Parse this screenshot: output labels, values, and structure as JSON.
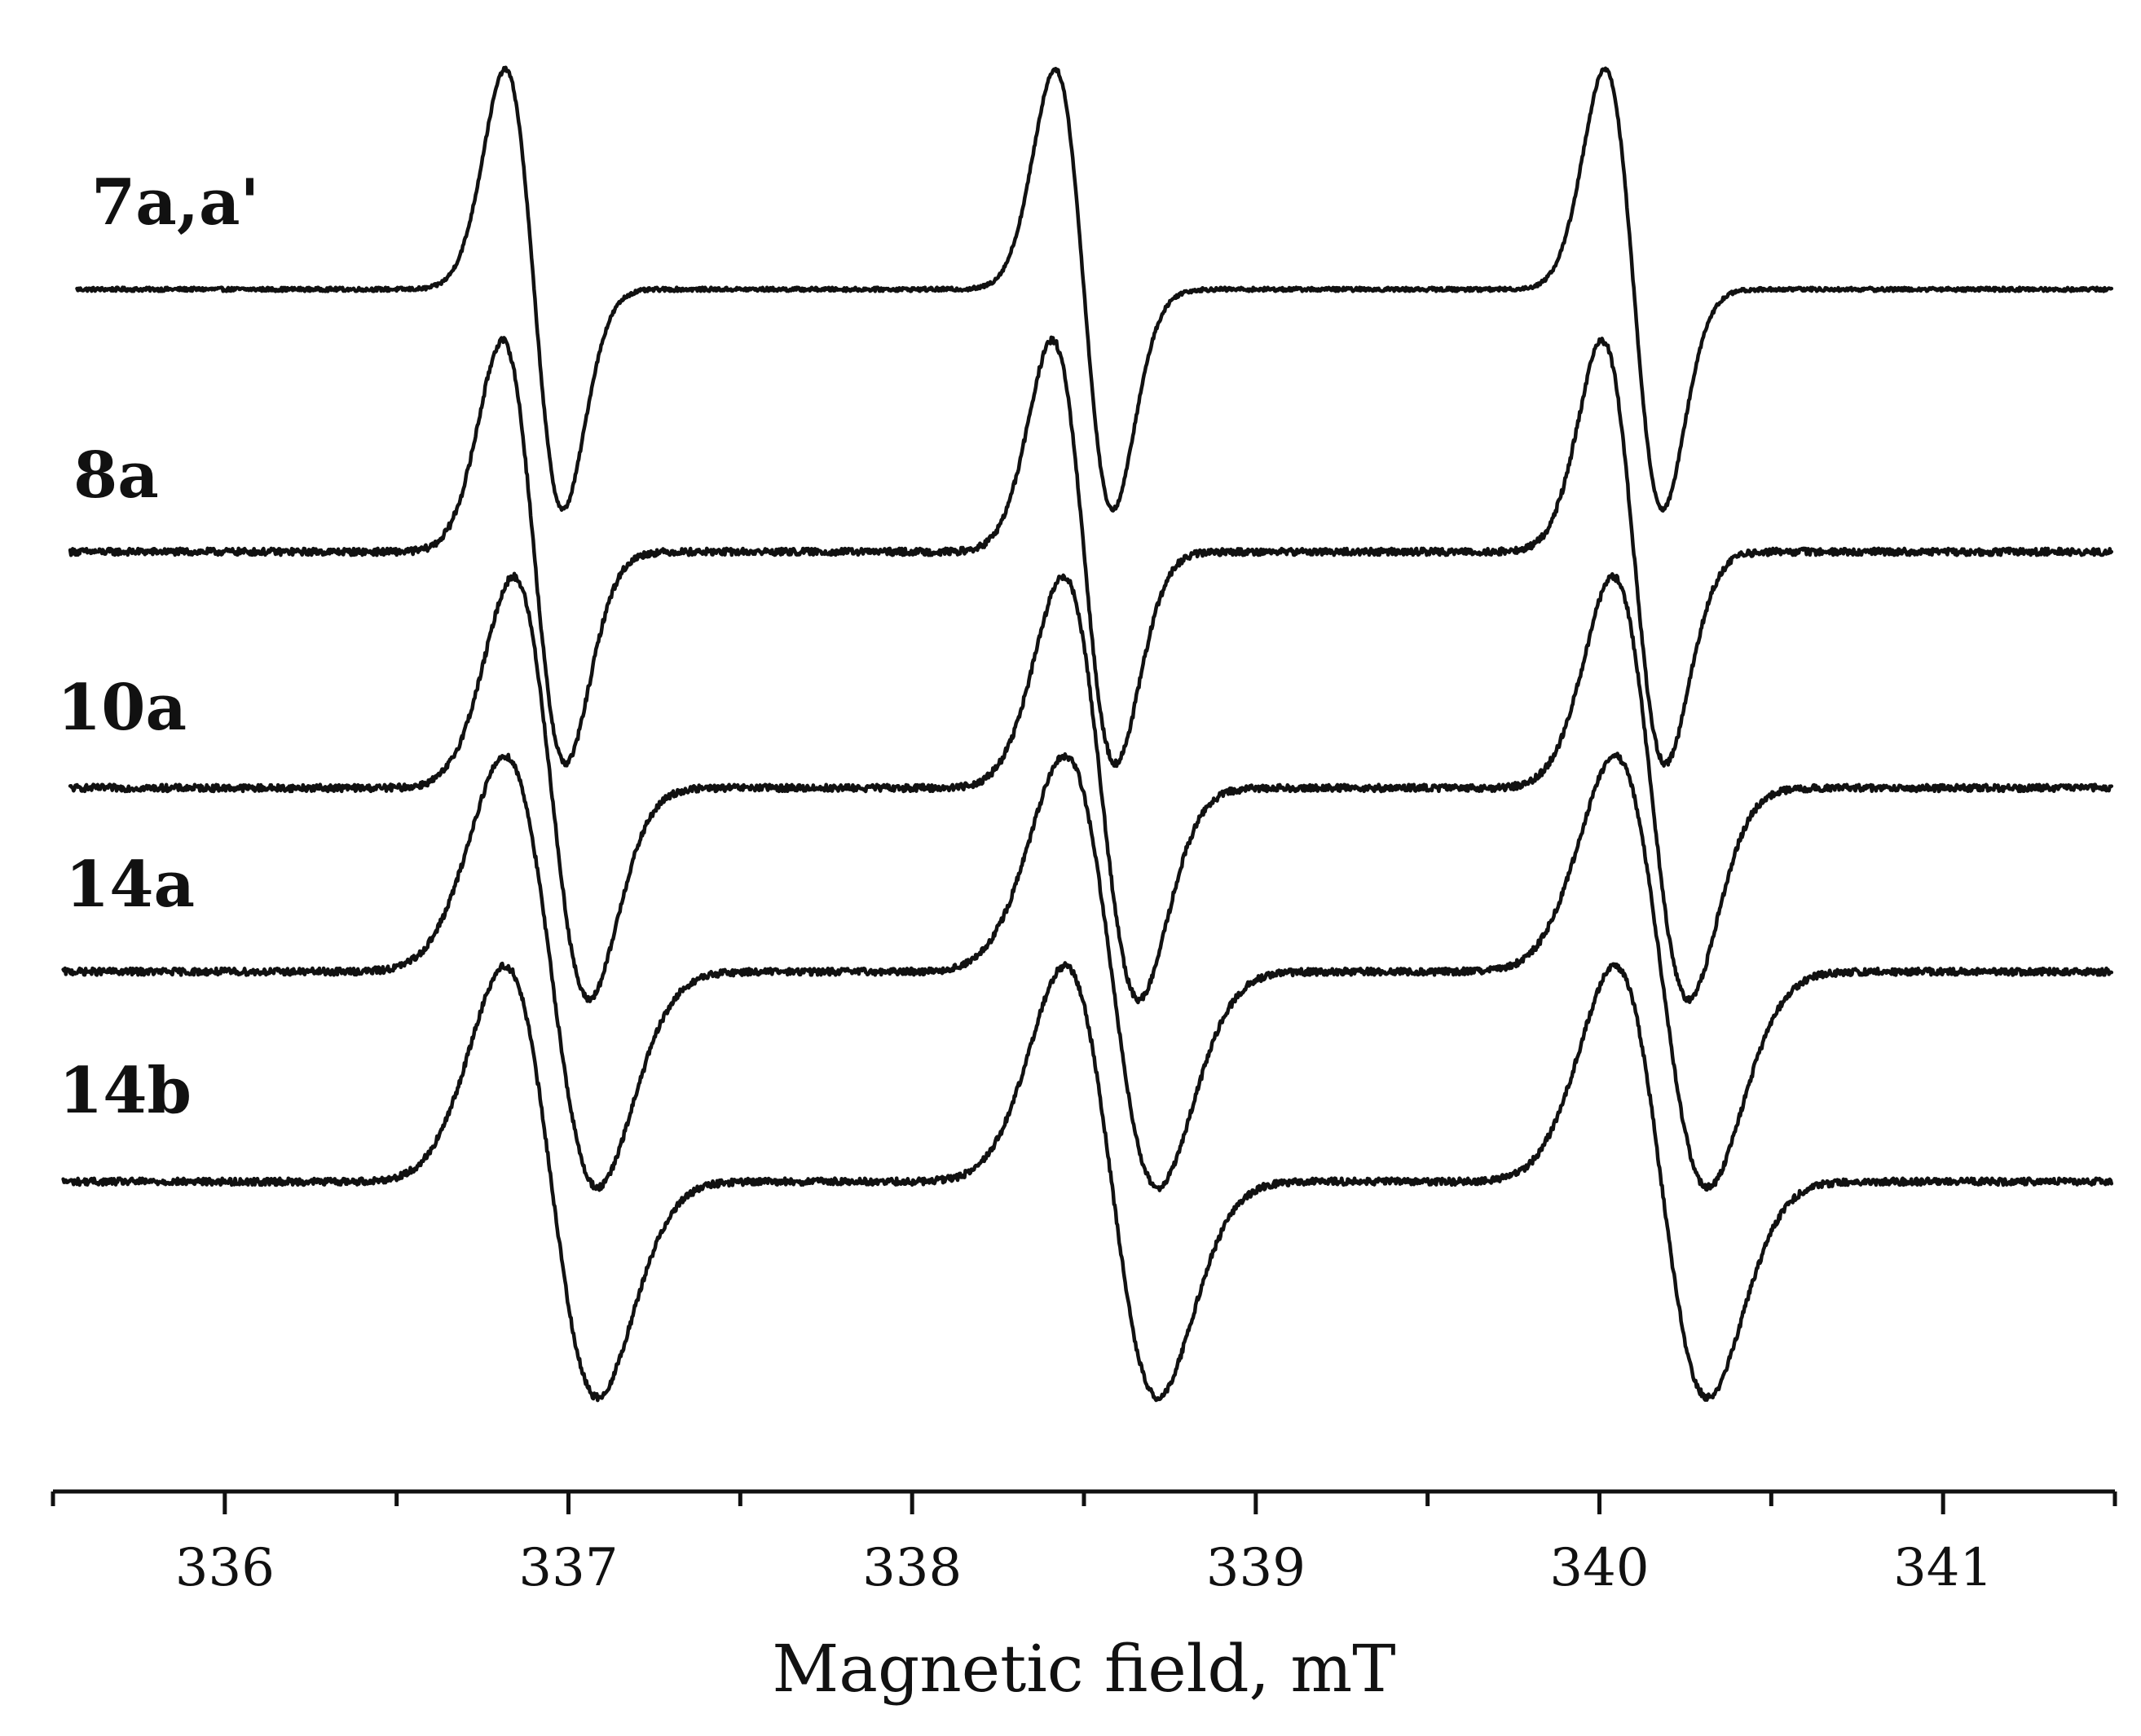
{
  "chart_data": {
    "type": "line",
    "title": "",
    "xlabel": "Magnetic field, mT",
    "ylabel": "",
    "xlim": [
      335.5,
      341.5
    ],
    "xticks": [
      336,
      337,
      338,
      339,
      340,
      341
    ],
    "xtick_labels": [
      "336",
      "337",
      "338",
      "339",
      "340",
      "341"
    ],
    "minor_xticks": [
      335.5,
      336.5,
      337.5,
      338.5,
      339.5,
      340.5,
      341.5
    ],
    "grid": false,
    "y_units": "derivative EPR intensity (arbitrary, stacked with offsets)",
    "series": [
      {
        "name": "7a,a'",
        "label": "7a,a'",
        "x_start": 335.57,
        "offset": 0,
        "peaks": [
          336.9,
          338.5,
          340.1
        ],
        "halfwidth": 0.084,
        "amplitude": 1.0,
        "noise": 0.008
      },
      {
        "name": "8a",
        "label": "8a",
        "x_start": 335.55,
        "offset": -1,
        "peaks": [
          336.9,
          338.5,
          340.1
        ],
        "halfwidth": 0.092,
        "amplitude": 0.96,
        "noise": 0.014
      },
      {
        "name": "10a",
        "label": "10a",
        "x_start": 335.55,
        "offset": -1.9,
        "peaks": [
          336.95,
          338.55,
          340.15
        ],
        "halfwidth": 0.11,
        "amplitude": 0.96,
        "noise": 0.014
      },
      {
        "name": "14a",
        "label": "14a",
        "x_start": 335.53,
        "offset": -2.6,
        "peaks": [
          336.95,
          338.58,
          340.18
        ],
        "halfwidth": 0.135,
        "amplitude": 0.98,
        "noise": 0.014
      },
      {
        "name": "14b",
        "label": "14b",
        "x_start": 335.53,
        "offset": -3.4,
        "peaks": [
          336.95,
          338.58,
          340.18
        ],
        "halfwidth": 0.135,
        "amplitude": 0.98,
        "noise": 0.014
      }
    ]
  }
}
